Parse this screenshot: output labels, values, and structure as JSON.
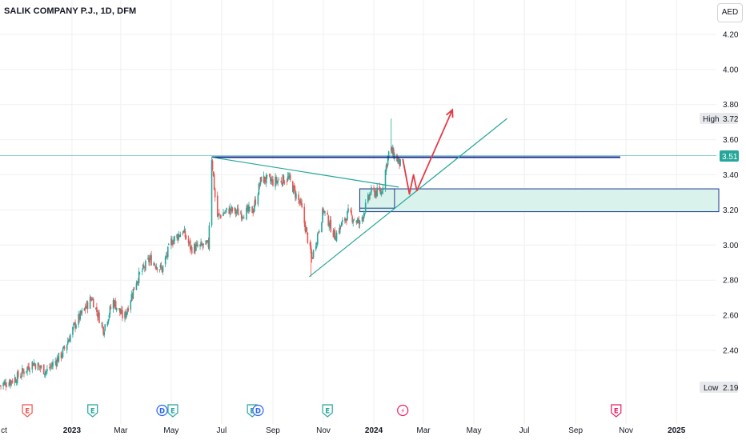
{
  "header": {
    "title": "SALIK COMPANY P.J., 1D, DFM",
    "currency": "AED"
  },
  "price_tags": {
    "high_label": "High",
    "high_value": "3.72",
    "current_value": "3.51",
    "low_label": "Low",
    "low_value": "2.19"
  },
  "colors": {
    "up": "#26a69a",
    "down": "#ef5350",
    "navy": "#0d2b8c",
    "zone_fill": "#d9f2ec",
    "trend": "#26a69a",
    "arrow": "#e53945",
    "grid": "#eef0f3"
  },
  "events": [
    {
      "letter": "E",
      "kind": "earnings-past",
      "color": "#ef5350",
      "date": "2022-11-08"
    },
    {
      "letter": "E",
      "kind": "earnings",
      "color": "#26a69a",
      "date": "2023-01-26"
    },
    {
      "letter": "D",
      "kind": "dividend",
      "color": "#2962ff",
      "date": "2023-04-20"
    },
    {
      "letter": "E",
      "kind": "earnings",
      "color": "#26a69a",
      "date": "2023-05-03"
    },
    {
      "letter": "E",
      "kind": "earnings",
      "color": "#26a69a",
      "date": "2023-08-07"
    },
    {
      "letter": "D",
      "kind": "dividend",
      "color": "#2962ff",
      "date": "2023-08-14"
    },
    {
      "letter": "E",
      "kind": "earnings",
      "color": "#26a69a",
      "date": "2023-11-06"
    },
    {
      "letter": "⚡",
      "kind": "split",
      "color": "#e91e63",
      "date": "2024-02-05"
    },
    {
      "letter": "E",
      "kind": "earnings-future",
      "color": "#e91e63",
      "date": "2024-10-20"
    }
  ],
  "chart_data": {
    "type": "candlestick",
    "title": "SALIK COMPANY P.J., 1D, DFM",
    "ylim": [
      2.1,
      4.3
    ],
    "xlim": [
      "2022-10-06",
      "2025-01-25"
    ],
    "y_ticks": [
      2.4,
      2.6,
      2.8,
      3.0,
      3.2,
      3.4,
      3.6,
      3.8,
      4.0,
      4.2
    ],
    "y_tick_labels": [
      "2.40",
      "2.60",
      "2.80",
      "3.00",
      "3.20",
      "3.40",
      "3.60",
      "3.80",
      "4.00",
      "4.20"
    ],
    "x_ticks": [
      {
        "label": "ct",
        "date": "2022-10-01",
        "bold": false
      },
      {
        "label": "2023",
        "date": "2023-01-01",
        "bold": true
      },
      {
        "label": "Mar",
        "date": "2023-03-01",
        "bold": false
      },
      {
        "label": "May",
        "date": "2023-05-01",
        "bold": false
      },
      {
        "label": "Jul",
        "date": "2023-07-01",
        "bold": false
      },
      {
        "label": "Sep",
        "date": "2023-09-01",
        "bold": false
      },
      {
        "label": "Nov",
        "date": "2023-11-01",
        "bold": false
      },
      {
        "label": "2024",
        "date": "2024-01-01",
        "bold": true
      },
      {
        "label": "Mar",
        "date": "2024-03-01",
        "bold": false
      },
      {
        "label": "May",
        "date": "2024-05-01",
        "bold": false
      },
      {
        "label": "Jul",
        "date": "2024-07-01",
        "bold": false
      },
      {
        "label": "Sep",
        "date": "2024-09-01",
        "bold": false
      },
      {
        "label": "Nov",
        "date": "2024-11-01",
        "bold": false
      },
      {
        "label": "2025",
        "date": "2025-01-01",
        "bold": true
      }
    ],
    "price_path": [
      {
        "date": "2022-10-06",
        "close": 2.2
      },
      {
        "date": "2022-10-25",
        "close": 2.24
      },
      {
        "date": "2022-11-15",
        "close": 2.33
      },
      {
        "date": "2022-12-01",
        "close": 2.28
      },
      {
        "date": "2022-12-20",
        "close": 2.38
      },
      {
        "date": "2023-01-05",
        "close": 2.55
      },
      {
        "date": "2023-01-25",
        "close": 2.7
      },
      {
        "date": "2023-02-08",
        "close": 2.52
      },
      {
        "date": "2023-02-20",
        "close": 2.68
      },
      {
        "date": "2023-03-05",
        "close": 2.58
      },
      {
        "date": "2023-03-20",
        "close": 2.8
      },
      {
        "date": "2023-04-05",
        "close": 2.92
      },
      {
        "date": "2023-04-20",
        "close": 2.86
      },
      {
        "date": "2023-05-01",
        "close": 3.02
      },
      {
        "date": "2023-05-15",
        "close": 3.08
      },
      {
        "date": "2023-05-25",
        "close": 2.98
      },
      {
        "date": "2023-06-15",
        "close": 3.0
      },
      {
        "date": "2023-06-19",
        "close": 3.5
      },
      {
        "date": "2023-06-25",
        "close": 3.16
      },
      {
        "date": "2023-07-10",
        "close": 3.2
      },
      {
        "date": "2023-07-25",
        "close": 3.18
      },
      {
        "date": "2023-08-08",
        "close": 3.2
      },
      {
        "date": "2023-08-18",
        "close": 3.38
      },
      {
        "date": "2023-09-01",
        "close": 3.36
      },
      {
        "date": "2023-09-20",
        "close": 3.38
      },
      {
        "date": "2023-10-05",
        "close": 3.22
      },
      {
        "date": "2023-10-18",
        "close": 2.92
      },
      {
        "date": "2023-11-01",
        "close": 3.2
      },
      {
        "date": "2023-11-15",
        "close": 3.05
      },
      {
        "date": "2023-12-01",
        "close": 3.18
      },
      {
        "date": "2023-12-15",
        "close": 3.12
      },
      {
        "date": "2023-12-28",
        "close": 3.3
      },
      {
        "date": "2024-01-10",
        "close": 3.3
      },
      {
        "date": "2024-01-20",
        "close": 3.55
      },
      {
        "date": "2024-02-02",
        "close": 3.46
      }
    ],
    "annotations": {
      "resistance_line": {
        "price": 3.5,
        "from": "2023-06-19",
        "to": "2024-10-25"
      },
      "current_price_line": 3.51,
      "demand_zone": {
        "top": 3.32,
        "bottom": 3.19,
        "from": "2023-12-15",
        "to": "2025-01-25"
      },
      "inner_box": {
        "top": 3.32,
        "bottom": 3.21,
        "from": "2023-12-15",
        "to": "2024-01-26"
      },
      "descending_trendline": [
        {
          "date": "2023-06-19",
          "price": 3.5
        },
        {
          "date": "2024-01-31",
          "price": 3.33
        }
      ],
      "ascending_trendline": [
        {
          "date": "2023-10-15",
          "price": 2.82
        },
        {
          "date": "2024-06-10",
          "price": 3.72
        }
      ],
      "projection_path": [
        {
          "date": "2024-02-05",
          "price": 3.49
        },
        {
          "date": "2024-02-13",
          "price": 3.29
        },
        {
          "date": "2024-02-18",
          "price": 3.4
        },
        {
          "date": "2024-02-22",
          "price": 3.31
        },
        {
          "date": "2024-04-05",
          "price": 3.77
        }
      ]
    }
  }
}
